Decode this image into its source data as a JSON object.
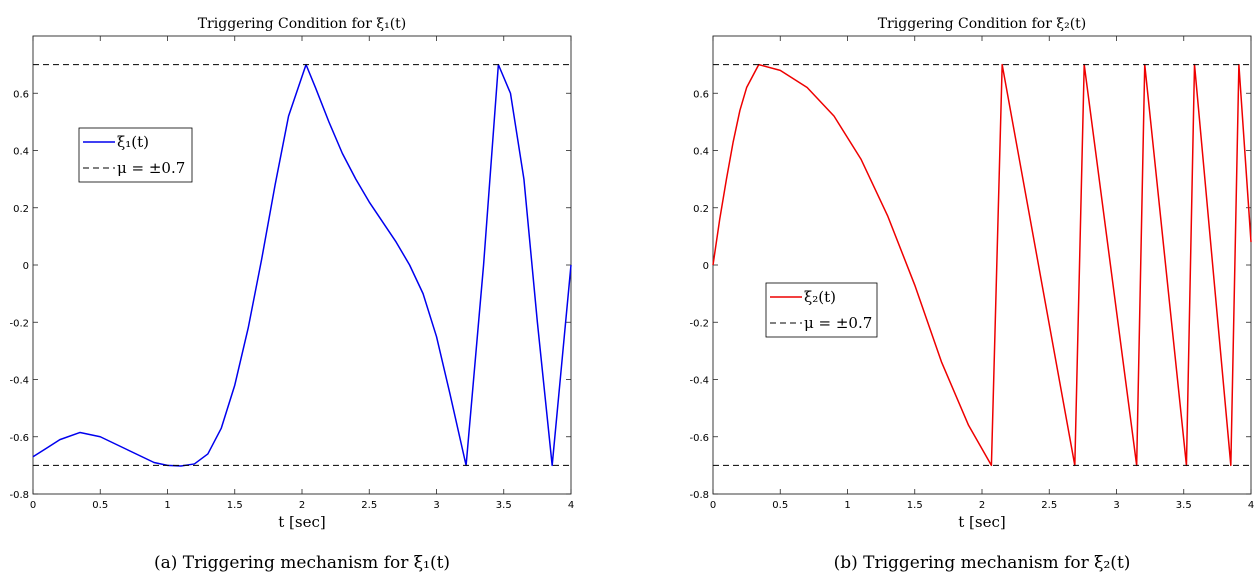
{
  "chart_data": [
    {
      "type": "line",
      "title": "Triggering Condition for ξ₁(t)",
      "caption": "(a) Triggering mechanism for ξ₁(t)",
      "xlabel": "t [sec]",
      "xlim": [
        0,
        4
      ],
      "ylim": [
        -0.8,
        0.8
      ],
      "xticks": [
        0,
        0.5,
        1,
        1.5,
        2,
        2.5,
        3,
        3.5,
        4
      ],
      "xtick_labels": [
        "0",
        "0.5",
        "1",
        "1.5",
        "2",
        "2.5",
        "3",
        "3.5",
        "4"
      ],
      "yticks": [
        -0.8,
        -0.6,
        -0.4,
        -0.2,
        0,
        0.2,
        0.4,
        0.6
      ],
      "ytick_labels": [
        "-0.8",
        "-0.6",
        "-0.4",
        "-0.2",
        "0",
        "0.2",
        "0.4",
        "0.6"
      ],
      "legend_position": "upper-left",
      "series": [
        {
          "name": "ξ₁(t)",
          "color": "#0000ee",
          "style": "solid",
          "x": [
            0,
            0.1,
            0.2,
            0.35,
            0.5,
            0.7,
            0.9,
            1.0,
            1.1,
            1.2,
            1.3,
            1.4,
            1.5,
            1.6,
            1.7,
            1.8,
            1.9,
            2.03,
            2.1,
            2.2,
            2.3,
            2.4,
            2.5,
            2.6,
            2.7,
            2.8,
            2.9,
            3.0,
            3.1,
            3.22,
            3.35,
            3.46,
            3.55,
            3.65,
            3.75,
            3.86,
            3.95,
            4.0
          ],
          "y": [
            -0.67,
            -0.64,
            -0.61,
            -0.585,
            -0.6,
            -0.645,
            -0.69,
            -0.7,
            -0.702,
            -0.695,
            -0.66,
            -0.57,
            -0.42,
            -0.22,
            0.02,
            0.28,
            0.52,
            0.7,
            0.62,
            0.5,
            0.39,
            0.3,
            0.22,
            0.15,
            0.08,
            0.0,
            -0.1,
            -0.25,
            -0.45,
            -0.7,
            0.0,
            0.7,
            0.6,
            0.3,
            -0.2,
            -0.7,
            -0.25,
            0.0
          ]
        },
        {
          "name": "μ = ±0.7",
          "color": "#000000",
          "style": "dashed",
          "levels": [
            0.7,
            -0.7
          ]
        }
      ]
    },
    {
      "type": "line",
      "title": "Triggering Condition for ξ₂(t)",
      "caption": "(b) Triggering mechanism for ξ₂(t)",
      "xlabel": "t [sec]",
      "xlim": [
        0,
        4
      ],
      "ylim": [
        -0.8,
        0.8
      ],
      "xticks": [
        0,
        0.5,
        1,
        1.5,
        2,
        2.5,
        3,
        3.5,
        4
      ],
      "xtick_labels": [
        "0",
        "0.5",
        "1",
        "1.5",
        "2",
        "2.5",
        "3",
        "3.5",
        "4"
      ],
      "yticks": [
        -0.8,
        -0.6,
        -0.4,
        -0.2,
        0,
        0.2,
        0.4,
        0.6
      ],
      "ytick_labels": [
        "-0.8",
        "-0.6",
        "-0.4",
        "-0.2",
        "0",
        "0.2",
        "0.4",
        "0.6"
      ],
      "legend_position": "center-left",
      "series": [
        {
          "name": "ξ₂(t)",
          "color": "#ee0000",
          "style": "solid",
          "x": [
            0,
            0.05,
            0.1,
            0.15,
            0.2,
            0.25,
            0.34,
            0.5,
            0.7,
            0.9,
            1.1,
            1.3,
            1.5,
            1.7,
            1.9,
            2.07,
            2.15,
            2.69,
            2.76,
            3.15,
            3.21,
            3.52,
            3.58,
            3.85,
            3.91,
            4.0
          ],
          "y": [
            0,
            0.16,
            0.3,
            0.43,
            0.54,
            0.62,
            0.7,
            0.68,
            0.62,
            0.52,
            0.37,
            0.17,
            -0.07,
            -0.34,
            -0.56,
            -0.7,
            0.7,
            -0.7,
            0.7,
            -0.7,
            0.7,
            -0.7,
            0.7,
            -0.7,
            0.7,
            0.08
          ]
        },
        {
          "name": "μ = ±0.7",
          "color": "#000000",
          "style": "dashed",
          "levels": [
            0.7,
            -0.7
          ]
        }
      ]
    }
  ]
}
